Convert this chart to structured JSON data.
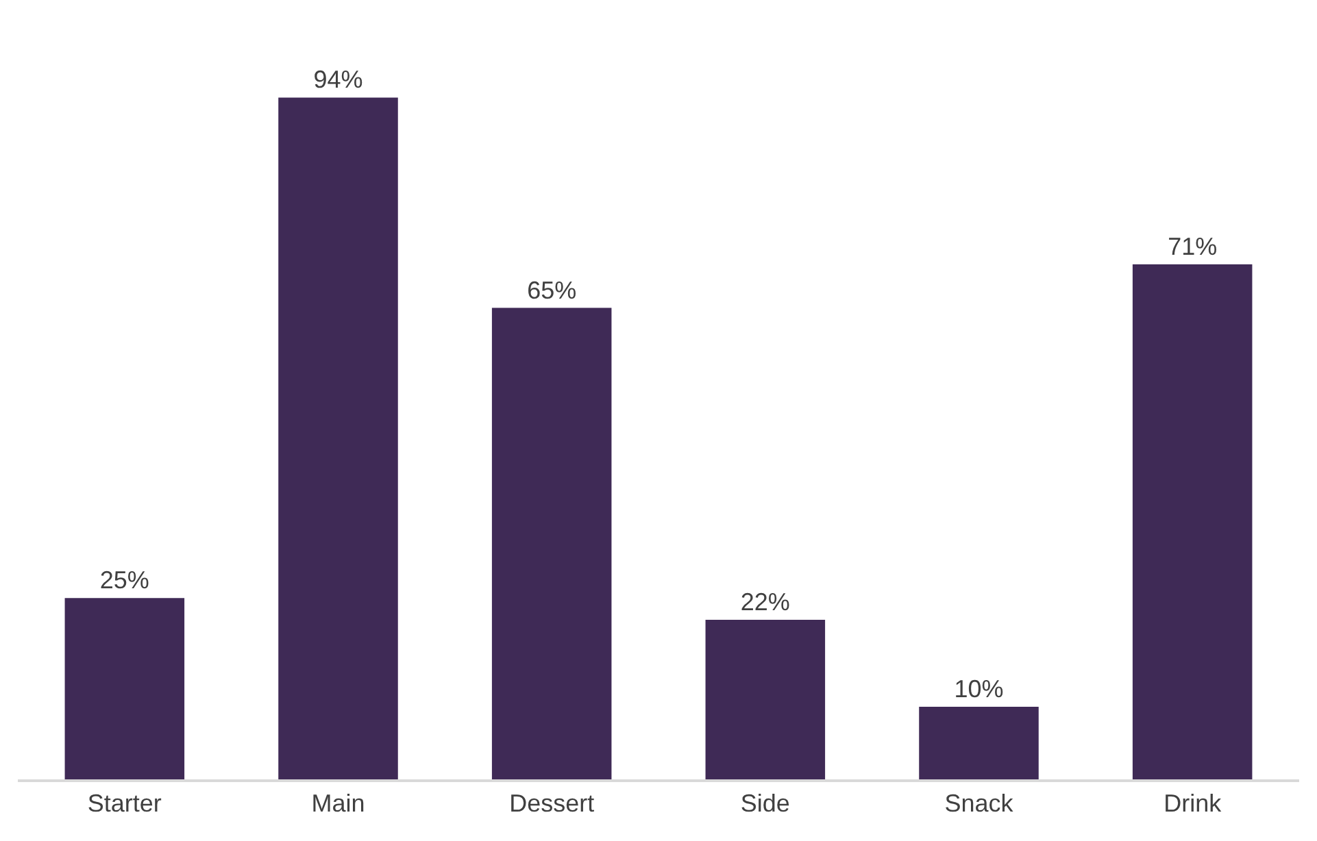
{
  "chart_data": {
    "type": "bar",
    "categories": [
      "Starter",
      "Main",
      "Dessert",
      "Side",
      "Snack",
      "Drink"
    ],
    "values": [
      25,
      94,
      65,
      22,
      10,
      71
    ],
    "value_labels": [
      "25%",
      "94%",
      "65%",
      "22%",
      "10%",
      "71%"
    ],
    "color": "#3f2a56"
  }
}
